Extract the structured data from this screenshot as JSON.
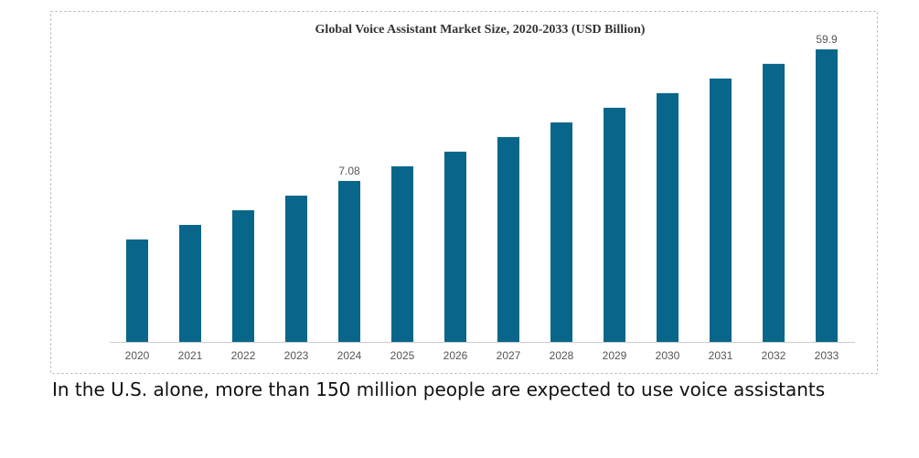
{
  "chart_data": {
    "type": "bar",
    "title": "Global Voice Assistant Market Size, 2020-2033 (USD Billion)",
    "categories": [
      "2020",
      "2021",
      "2022",
      "2023",
      "2024",
      "2025",
      "2026",
      "2027",
      "2028",
      "2029",
      "2030",
      "2031",
      "2032",
      "2033"
    ],
    "values": [
      2.74,
      3.47,
      4.4,
      5.58,
      7.08,
      8.98,
      11.39,
      14.44,
      18.31,
      23.22,
      29.44,
      37.33,
      47.34,
      59.9
    ],
    "value_labels": [
      null,
      null,
      null,
      null,
      "7.08",
      null,
      null,
      null,
      null,
      null,
      null,
      null,
      null,
      "59.9"
    ],
    "color": "#08668a",
    "log_scale": true,
    "ylim": [
      0.52,
      73.7
    ]
  },
  "caption": "In the U.S. alone, more than 150 million people are expected to use voice assistants"
}
